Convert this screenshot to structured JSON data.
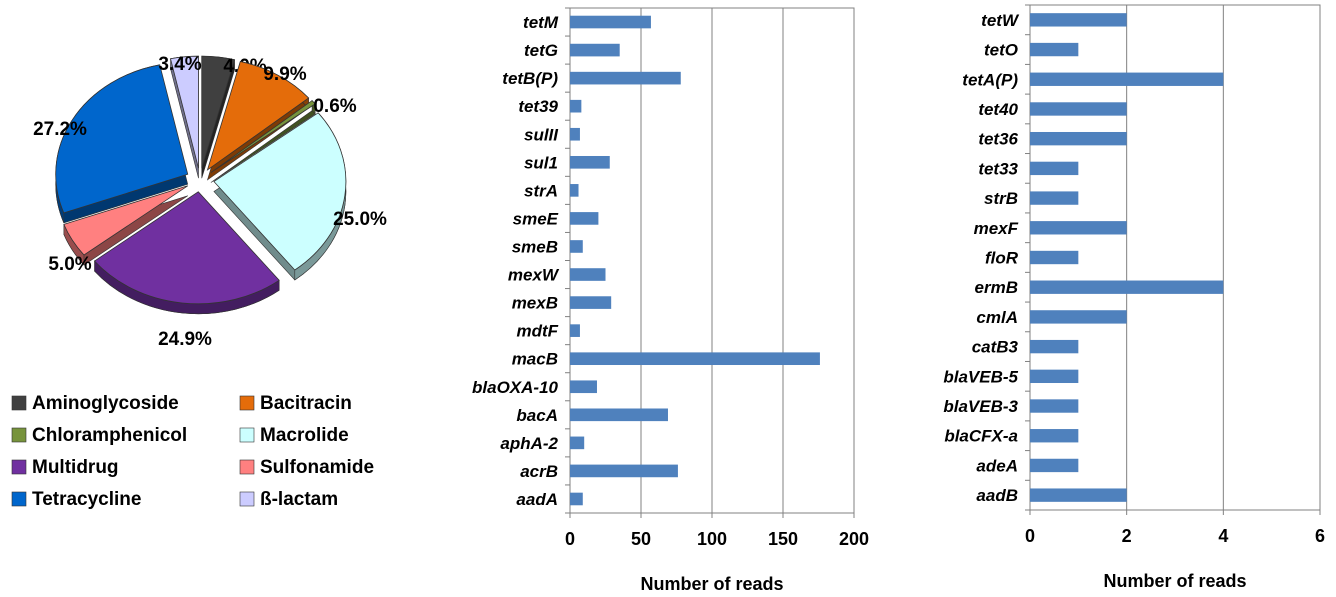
{
  "chart_data": [
    {
      "type": "pie",
      "series": [
        {
          "label": "Aminoglycoside",
          "value": 4.0,
          "value_label": "4.0%",
          "color": "#404040"
        },
        {
          "label": "Bacitracin",
          "value": 9.9,
          "value_label": "9.9%",
          "color": "#E46C0A"
        },
        {
          "label": "Chloramphenicol",
          "value": 0.6,
          "value_label": "0.6%",
          "color": "#77933C"
        },
        {
          "label": "Macrolide",
          "value": 25.0,
          "value_label": "25.0%",
          "color": "#CCFFFF"
        },
        {
          "label": "Multidrug",
          "value": 24.9,
          "value_label": "24.9%",
          "color": "#7030A0"
        },
        {
          "label": "Sulfonamide",
          "value": 5.0,
          "value_label": "5.0%",
          "color": "#FF8080"
        },
        {
          "label": "Tetracycline",
          "value": 27.2,
          "value_label": "27.2%",
          "color": "#0066CC"
        },
        {
          "label": "ß-lactam",
          "value": 3.4,
          "value_label": "3.4%",
          "color": "#CCCCFF"
        }
      ],
      "style": "3d exploded",
      "legend": "bottom"
    },
    {
      "type": "bar",
      "orientation": "horizontal",
      "categories": [
        "tetM",
        "tetG",
        "tetB(P)",
        "tet39",
        "sulII",
        "sul1",
        "strA",
        "smeE",
        "smeB",
        "mexW",
        "mexB",
        "mdtF",
        "macB",
        "blaOXA-10",
        "bacA",
        "aphA-2",
        "acrB",
        "aadA"
      ],
      "values": [
        57,
        35,
        78,
        8,
        7,
        28,
        6,
        20,
        9,
        25,
        29,
        7,
        176,
        19,
        69,
        10,
        76,
        9
      ],
      "xlabel": "Number of reads",
      "xlim": [
        0,
        200
      ],
      "xticks": [
        0,
        50,
        100,
        150,
        200
      ],
      "grid": "vertical",
      "color": "#4F81BD"
    },
    {
      "type": "bar",
      "orientation": "horizontal",
      "categories": [
        "tetW",
        "tetO",
        "tetA(P)",
        "tet40",
        "tet36",
        "tet33",
        "strB",
        "mexF",
        "floR",
        "ermB",
        "cmlA",
        "catB3",
        "blaVEB-5",
        "blaVEB-3",
        "blaCFX-a",
        "adeA",
        "aadB"
      ],
      "values": [
        2,
        1,
        4,
        2,
        2,
        1,
        1,
        2,
        1,
        4,
        2,
        1,
        1,
        1,
        1,
        1,
        2
      ],
      "xlabel": "Number of reads",
      "xlim": [
        0,
        6
      ],
      "xticks": [
        0,
        2,
        4,
        6
      ],
      "grid": "vertical",
      "color": "#4F81BD"
    }
  ]
}
